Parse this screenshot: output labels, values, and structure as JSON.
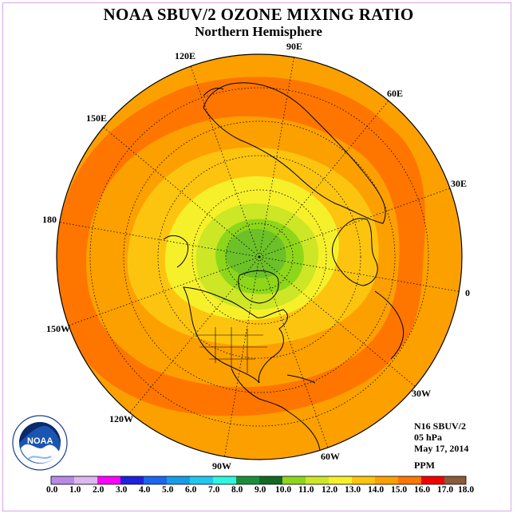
{
  "header": {
    "title": "NOAA SBUV/2 OZONE MIXING RATIO",
    "subtitle": "Northern Hemisphere"
  },
  "longitude_labels": [
    "90E",
    "60E",
    "30E",
    "0",
    "30W",
    "60W",
    "90W",
    "120W",
    "150W",
    "180",
    "150E",
    "120E"
  ],
  "info": {
    "instrument": "N16 SBUV/2",
    "level": "05 hPa",
    "date": "May 17, 2014",
    "units": "PPM"
  },
  "logo": {
    "text": "NOAA"
  },
  "colorbar": {
    "ticks": [
      "0.0",
      "1.0",
      "2.0",
      "3.0",
      "4.0",
      "5.0",
      "6.0",
      "7.0",
      "8.0",
      "9.0",
      "10.0",
      "11.0",
      "12.0",
      "13.0",
      "14.0",
      "15.0",
      "16.0",
      "17.0",
      "18.0"
    ],
    "colors": [
      "#b88ae8",
      "#ddb8f0",
      "#f0f",
      "#2020e0",
      "#1a66f0",
      "#159ee8",
      "#1ec8f0",
      "#2ef6e0",
      "#1a8f3a",
      "#116a24",
      "#8ed61a",
      "#cde625",
      "#f6f02a",
      "#fdc40f",
      "#fca000",
      "#fe7600",
      "#f20000",
      "#aa1e1e",
      "#8a5a3a"
    ]
  },
  "map_fields": {
    "ozone_bands_ppm": [
      "9-10",
      "10-11",
      "11-12",
      "12-13",
      "13-14",
      "14-15",
      "15-16"
    ],
    "band_colors": [
      "#6cc028",
      "#8ed61a",
      "#cde625",
      "#f6f02a",
      "#fdc40f",
      "#fca000",
      "#fe7600"
    ]
  }
}
